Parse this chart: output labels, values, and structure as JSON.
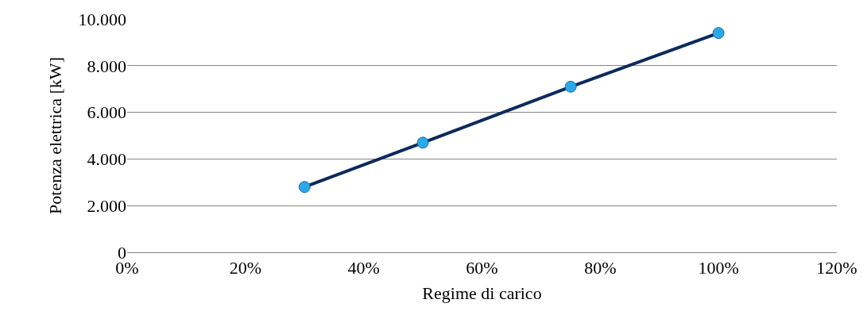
{
  "chart_data": {
    "type": "line",
    "xlabel": "Regime di carico",
    "ylabel": "Potenza elettrica [kW]",
    "x": [
      30,
      50,
      75,
      100
    ],
    "series": [
      {
        "color": "#0c2a5c",
        "values": [
          2800,
          4700,
          7100,
          9400
        ]
      }
    ],
    "xlim": [
      0,
      120
    ],
    "xticks": [
      {
        "value": 0,
        "label": "0%"
      },
      {
        "value": 20,
        "label": "20%"
      },
      {
        "value": 40,
        "label": "40%"
      },
      {
        "value": 60,
        "label": "60%"
      },
      {
        "value": 80,
        "label": "80%"
      },
      {
        "value": 100,
        "label": "100%"
      },
      {
        "value": 120,
        "label": "120%"
      }
    ],
    "ylim": [
      0,
      10000
    ],
    "yticks": [
      0,
      {
        "value": 2000,
        "label": "2.000"
      },
      {
        "value": 4000,
        "label": "4.000"
      },
      {
        "value": 6000,
        "label": "6.000"
      },
      {
        "value": 8000,
        "label": "8.000"
      },
      {
        "value": 10000,
        "label": "10.000"
      }
    ],
    "grid": "y",
    "legend": false,
    "marker": "circle",
    "line_style": "solid"
  }
}
